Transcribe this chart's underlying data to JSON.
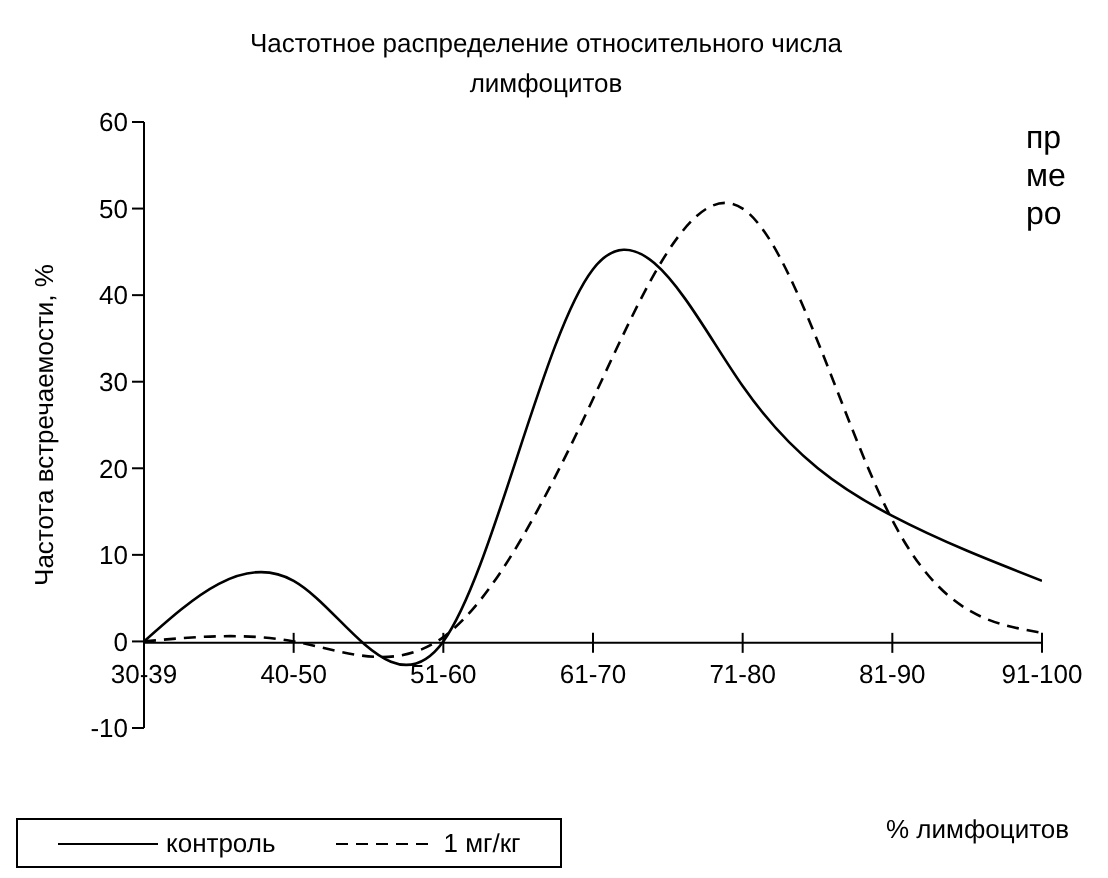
{
  "chart_data": {
    "type": "line",
    "title": "Частотное распределение относительного числа лимфоцитов",
    "xlabel": "% лимфоцитов",
    "ylabel": "Частота встречаемости, %",
    "categories": [
      "30-39",
      "40-50",
      "51-60",
      "61-70",
      "71-80",
      "81-90",
      "91-100"
    ],
    "series": [
      {
        "name": "контроль",
        "color": "#000000",
        "line_style": "solid",
        "values": [
          0,
          7,
          0,
          43,
          29.5,
          14.5,
          7
        ]
      },
      {
        "name": "1 мг/кг",
        "color": "#000000",
        "line_style": "dashed",
        "values": [
          0,
          0,
          0.5,
          28,
          50,
          14,
          1
        ]
      }
    ],
    "ylim": [
      -10,
      60
    ],
    "yticks": [
      -10,
      0,
      10,
      20,
      30,
      40,
      50,
      60
    ],
    "legend": "bottom left",
    "marker": "none",
    "annotations": [
      "пр",
      "ме",
      "ро"
    ]
  }
}
